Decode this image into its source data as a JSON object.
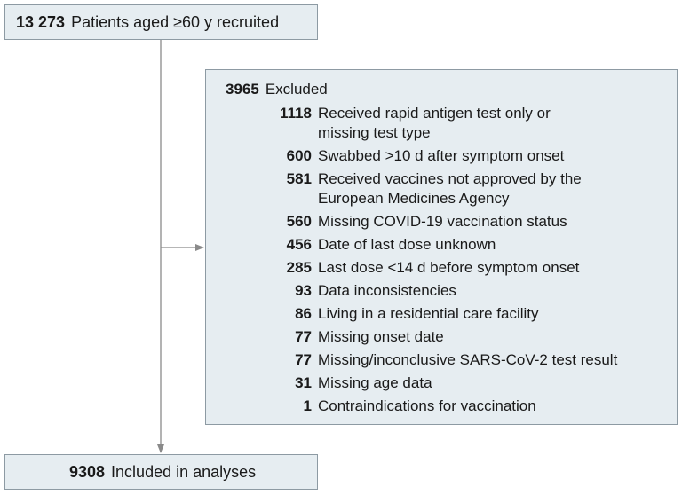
{
  "recruited": {
    "count": "13 273",
    "label": "Patients aged ≥60 y recruited"
  },
  "excluded": {
    "count": "3965",
    "label": "Excluded",
    "reasons": [
      {
        "count": "1118",
        "label": "Received rapid antigen test only or\nmissing test type"
      },
      {
        "count": "600",
        "label": "Swabbed >10 d after symptom onset"
      },
      {
        "count": "581",
        "label": "Received vaccines not approved by the\nEuropean Medicines Agency"
      },
      {
        "count": "560",
        "label": "Missing COVID-19 vaccination status"
      },
      {
        "count": "456",
        "label": "Date of last dose unknown"
      },
      {
        "count": "285",
        "label": "Last dose <14 d before symptom onset"
      },
      {
        "count": "93",
        "label": "Data inconsistencies"
      },
      {
        "count": "86",
        "label": "Living in a residential care facility"
      },
      {
        "count": "77",
        "label": "Missing onset date"
      },
      {
        "count": "77",
        "label": "Missing/inconclusive SARS-CoV-2 test result"
      },
      {
        "count": "31",
        "label": "Missing age data"
      },
      {
        "count": "1",
        "label": "Contraindications for vaccination"
      }
    ]
  },
  "included": {
    "count": "9308",
    "label": "Included in analyses"
  },
  "colors": {
    "box_fill": "#e6edf1",
    "box_border": "#8d9aa3",
    "arrow": "#8a8a8a"
  }
}
